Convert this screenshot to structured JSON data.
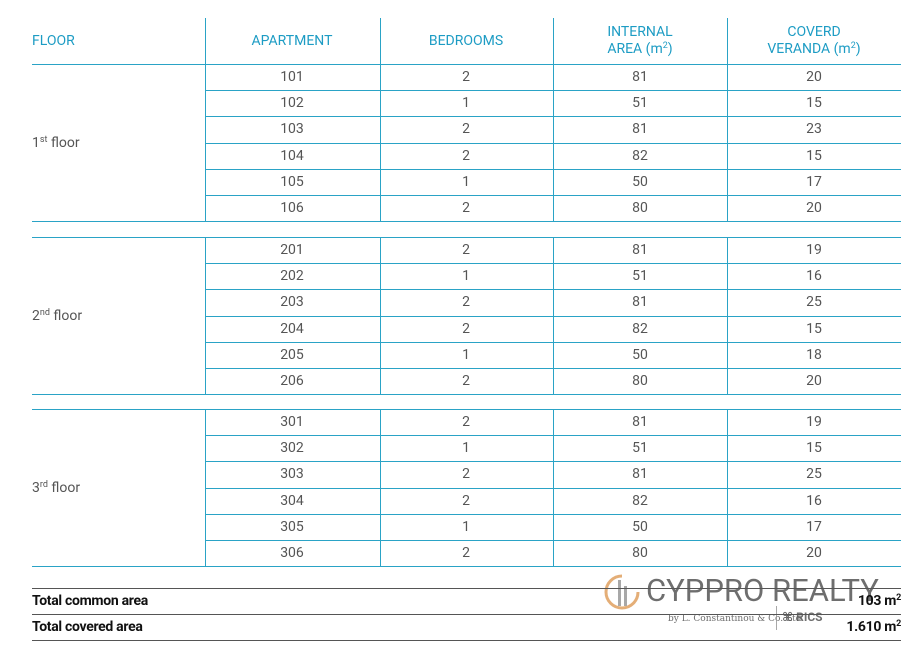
{
  "header": {
    "columns": [
      {
        "lines": [
          [
            "FLOOR"
          ]
        ]
      },
      {
        "lines": [
          [
            "APARTMENT"
          ]
        ]
      },
      {
        "lines": [
          [
            "BEDROOMS"
          ]
        ]
      },
      {
        "lines": [
          [
            "INTERNAL"
          ],
          [
            "AREA (m",
            "2",
            ")"
          ]
        ]
      },
      {
        "lines": [
          [
            "COVERD"
          ],
          [
            "VERANDA (m",
            "2",
            ")"
          ]
        ]
      }
    ]
  },
  "floors": [
    {
      "label": [
        "1",
        "st",
        " floor"
      ],
      "rows": [
        [
          101,
          2,
          81,
          20
        ],
        [
          102,
          1,
          51,
          15
        ],
        [
          103,
          2,
          81,
          23
        ],
        [
          104,
          2,
          82,
          15
        ],
        [
          105,
          1,
          50,
          17
        ],
        [
          106,
          2,
          80,
          20
        ]
      ]
    },
    {
      "label": [
        "2",
        "nd",
        " floor"
      ],
      "rows": [
        [
          201,
          2,
          81,
          19
        ],
        [
          202,
          1,
          51,
          16
        ],
        [
          203,
          2,
          81,
          25
        ],
        [
          204,
          2,
          82,
          15
        ],
        [
          205,
          1,
          50,
          18
        ],
        [
          206,
          2,
          80,
          20
        ]
      ]
    },
    {
      "label": [
        "3",
        "rd",
        " floor"
      ],
      "rows": [
        [
          301,
          2,
          81,
          19
        ],
        [
          302,
          1,
          51,
          15
        ],
        [
          303,
          2,
          81,
          25
        ],
        [
          304,
          2,
          82,
          16
        ],
        [
          305,
          1,
          50,
          17
        ],
        [
          306,
          2,
          80,
          20
        ]
      ]
    }
  ],
  "totals": [
    {
      "label": "Total common area",
      "value": [
        "103 m",
        "2"
      ]
    },
    {
      "label": "Total covered area",
      "value": [
        "1.610 m",
        "2"
      ]
    }
  ],
  "watermark": {
    "brand": "CYPPRO REALTY",
    "tagline": "by L. Constantinou & Co. Ltd",
    "badge": "RICS"
  }
}
